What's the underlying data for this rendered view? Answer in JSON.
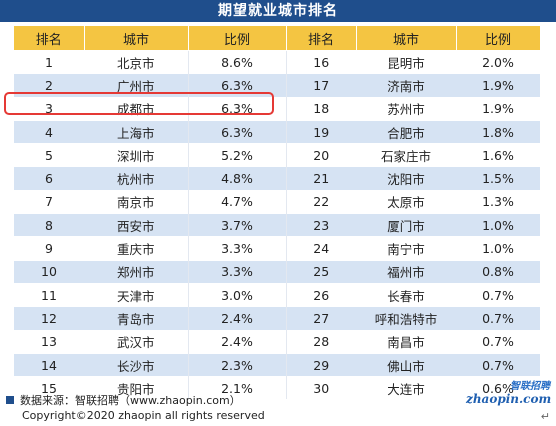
{
  "title": "期望就业城市排名",
  "headers": [
    "排名",
    "城市",
    "比例",
    "排名",
    "城市",
    "比例"
  ],
  "rows": [
    {
      "rank1": "1",
      "city1": "北京市",
      "pct1": "8.6%",
      "rank2": "16",
      "city2": "昆明市",
      "pct2": "2.0%"
    },
    {
      "rank1": "2",
      "city1": "广州市",
      "pct1": "6.3%",
      "rank2": "17",
      "city2": "济南市",
      "pct2": "1.9%"
    },
    {
      "rank1": "3",
      "city1": "成都市",
      "pct1": "6.3%",
      "rank2": "18",
      "city2": "苏州市",
      "pct2": "1.9%"
    },
    {
      "rank1": "4",
      "city1": "上海市",
      "pct1": "6.3%",
      "rank2": "19",
      "city2": "合肥市",
      "pct2": "1.8%"
    },
    {
      "rank1": "5",
      "city1": "深圳市",
      "pct1": "5.2%",
      "rank2": "20",
      "city2": "石家庄市",
      "pct2": "1.6%"
    },
    {
      "rank1": "6",
      "city1": "杭州市",
      "pct1": "4.8%",
      "rank2": "21",
      "city2": "沈阳市",
      "pct2": "1.5%"
    },
    {
      "rank1": "7",
      "city1": "南京市",
      "pct1": "4.7%",
      "rank2": "22",
      "city2": "太原市",
      "pct2": "1.3%"
    },
    {
      "rank1": "8",
      "city1": "西安市",
      "pct1": "3.7%",
      "rank2": "23",
      "city2": "厦门市",
      "pct2": "1.0%"
    },
    {
      "rank1": "9",
      "city1": "重庆市",
      "pct1": "3.3%",
      "rank2": "24",
      "city2": "南宁市",
      "pct2": "1.0%"
    },
    {
      "rank1": "10",
      "city1": "郑州市",
      "pct1": "3.3%",
      "rank2": "25",
      "city2": "福州市",
      "pct2": "0.8%"
    },
    {
      "rank1": "11",
      "city1": "天津市",
      "pct1": "3.0%",
      "rank2": "26",
      "city2": "长春市",
      "pct2": "0.7%"
    },
    {
      "rank1": "12",
      "city1": "青岛市",
      "pct1": "2.4%",
      "rank2": "27",
      "city2": "呼和浩特市",
      "pct2": "0.7%"
    },
    {
      "rank1": "13",
      "city1": "武汉市",
      "pct1": "2.4%",
      "rank2": "28",
      "city2": "南昌市",
      "pct2": "0.7%"
    },
    {
      "rank1": "14",
      "city1": "长沙市",
      "pct1": "2.3%",
      "rank2": "29",
      "city2": "佛山市",
      "pct2": "0.7%"
    },
    {
      "rank1": "15",
      "city1": "贵阳市",
      "pct1": "2.1%",
      "rank2": "30",
      "city2": "大连市",
      "pct2": "0.6%"
    }
  ],
  "footer": {
    "source": "数据来源：智联招聘（www.zhaopin.com）",
    "copyright": "Copyright©2020 zhaopin all rights reserved"
  },
  "brand": {
    "top": "智联招聘",
    "url": "zhaopin.com"
  },
  "colors": {
    "title_bg": "#1f4e8c",
    "header_bg": "#f4c542",
    "stripe": "#d6e3f3",
    "highlight": "#e53935"
  }
}
